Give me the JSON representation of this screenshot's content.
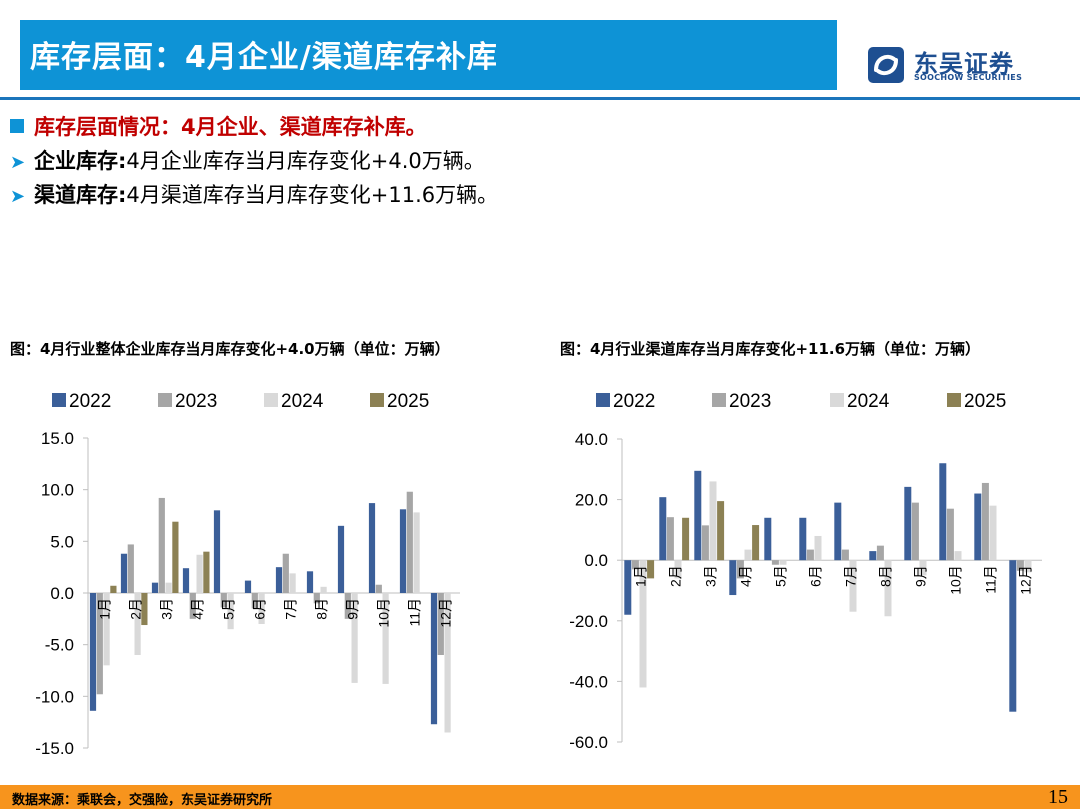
{
  "header": {
    "title": "库存层面：4月企业/渠道库存补库",
    "brand_cn": "东吴证券",
    "brand_en": "SOOCHOW SECURITIES",
    "brand_color": "#1e4f91",
    "bar_color": "#0e93d6"
  },
  "bullets": {
    "main": "库存层面情况：4月企业、渠道库存补库。",
    "item1_label": "企业库存:",
    "item1_text": "4月企业库存当月库存变化+4.0万辆。",
    "item2_label": "渠道库存:",
    "item2_text": "4月渠道库存当月库存变化+11.6万辆。",
    "arrow_icon": "arrow-right-icon",
    "square_icon": "square-bullet-icon"
  },
  "chart_titles": {
    "left": "图：4月行业整体企业库存当月库存变化+4.0万辆（单位：万辆）",
    "right": "图：4月行业渠道库存当月库存变化+11.6万辆（单位：万辆）"
  },
  "chart_data": [
    {
      "type": "bar",
      "title": "图：4月行业整体企业库存当月库存变化+4.0万辆（单位：万辆）",
      "categories": [
        "1月",
        "2月",
        "3月",
        "4月",
        "5月",
        "6月",
        "7月",
        "8月",
        "9月",
        "10月",
        "11月",
        "12月"
      ],
      "ylim": [
        -15,
        15
      ],
      "yticks": [
        15,
        10,
        5,
        0,
        -5,
        -10,
        -15
      ],
      "ytick_labels": [
        "15.0",
        "10.0",
        "5.0",
        "0.0",
        "-5.0",
        "-10.0",
        "-15.0"
      ],
      "legend_position": "top",
      "series": [
        {
          "name": "2022",
          "color": "#3b5f99",
          "values": [
            -11.4,
            3.8,
            1.0,
            2.4,
            8.0,
            1.2,
            2.5,
            2.1,
            6.5,
            8.7,
            8.1,
            -12.7
          ]
        },
        {
          "name": "2023",
          "color": "#a6a6a6",
          "values": [
            -9.8,
            4.7,
            9.2,
            -2.5,
            -1.4,
            -1.5,
            3.8,
            -1.0,
            -2.5,
            0.8,
            9.8,
            -6.0
          ]
        },
        {
          "name": "2024",
          "color": "#d9d9d9",
          "values": [
            -7.0,
            -6.0,
            1.0,
            3.7,
            -3.5,
            -3.0,
            1.9,
            0.6,
            -8.7,
            -8.8,
            7.8,
            -13.5
          ]
        },
        {
          "name": "2025",
          "color": "#8c8154",
          "values": [
            0.7,
            -3.1,
            6.9,
            4.0,
            null,
            null,
            null,
            null,
            null,
            null,
            null,
            null
          ]
        }
      ]
    },
    {
      "type": "bar",
      "title": "图：4月行业渠道库存当月库存变化+11.6万辆（单位：万辆）",
      "categories": [
        "1月",
        "2月",
        "3月",
        "4月",
        "5月",
        "6月",
        "7月",
        "8月",
        "9月",
        "10月",
        "11月",
        "12月"
      ],
      "ylim": [
        -60,
        40
      ],
      "yticks": [
        40,
        20,
        0,
        -20,
        -40,
        -60
      ],
      "ytick_labels": [
        "40.0",
        "20.0",
        "0.0",
        "-20.0",
        "-40.0",
        "-60.0"
      ],
      "legend_position": "top",
      "series": [
        {
          "name": "2022",
          "color": "#3b5f99",
          "values": [
            -18.0,
            20.8,
            29.5,
            -11.5,
            14.0,
            14.0,
            19.0,
            3.0,
            24.2,
            32.0,
            22.0,
            -50.0
          ]
        },
        {
          "name": "2023",
          "color": "#a6a6a6",
          "values": [
            -3.0,
            14.2,
            11.5,
            -6.0,
            -1.5,
            3.5,
            3.5,
            4.8,
            19.0,
            17.0,
            25.5,
            -3.5
          ]
        },
        {
          "name": "2024",
          "color": "#d9d9d9",
          "values": [
            -42.0,
            -6.0,
            26.0,
            3.5,
            -1.5,
            8.0,
            -17.0,
            -18.5,
            -5.0,
            3.0,
            18.0,
            -4.0
          ]
        },
        {
          "name": "2025",
          "color": "#8c8154",
          "values": [
            -6.0,
            14.0,
            19.5,
            11.6,
            null,
            null,
            null,
            null,
            null,
            null,
            null,
            null
          ]
        }
      ]
    }
  ],
  "footer": {
    "source": "数据来源：乘联会，交强险，东吴证券研究所",
    "page": "15"
  }
}
